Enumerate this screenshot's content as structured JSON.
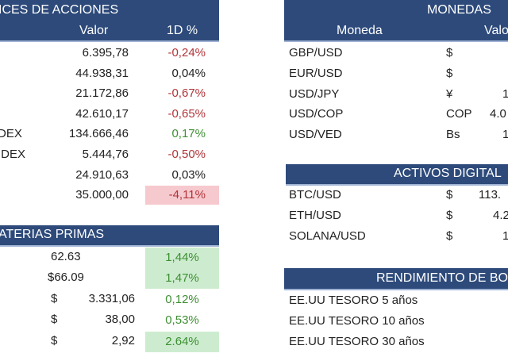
{
  "indices": {
    "title": "ICES DE ACCIONES",
    "col_valor": "Valor",
    "col_1d": "1D %",
    "rows": [
      {
        "label": "",
        "valor": "6.395,78",
        "pct": "-0,24%",
        "tone": "red"
      },
      {
        "label": "",
        "valor": "44.938,31",
        "pct": "0,04%",
        "tone": "neutral"
      },
      {
        "label": "",
        "valor": "21.172,86",
        "pct": "-0,67%",
        "tone": "red"
      },
      {
        "label": "",
        "valor": "42.610,17",
        "pct": "-0,65%",
        "tone": "red"
      },
      {
        "label": "DEX",
        "valor": "134.666,46",
        "pct": "0,17%",
        "tone": "green"
      },
      {
        "label": "IDEX",
        "valor": "5.444,76",
        "pct": "-0,50%",
        "tone": "red"
      },
      {
        "label": "",
        "valor": "24.910,63",
        "pct": "0,03%",
        "tone": "neutral"
      },
      {
        "label": "",
        "valor": "35.000,00",
        "pct": "-4,11%",
        "tone": "red-highlight"
      }
    ]
  },
  "materias": {
    "title": "ATERIAS PRIMAS",
    "rows": [
      {
        "label": "",
        "cur": "",
        "valor": "62.63",
        "pct": "1,44%",
        "hl": true
      },
      {
        "label": "",
        "cur": "",
        "valor": "$66.09",
        "pct": "1,47%",
        "hl": true
      },
      {
        "label": "",
        "cur": "$",
        "valor": "3.331,06",
        "pct": "0,12%",
        "hl": false
      },
      {
        "label": "",
        "cur": "$",
        "valor": "38,00",
        "pct": "0,53%",
        "hl": false
      },
      {
        "label": "",
        "cur": "$",
        "valor": "2,92",
        "pct": "2.64%",
        "hl": true
      }
    ]
  },
  "monedas": {
    "title": "MONEDAS",
    "col_moneda": "Moneda",
    "col_valor": "Valo",
    "rows": [
      {
        "pair": "GBP/USD",
        "cur": "$",
        "valor": ""
      },
      {
        "pair": "EUR/USD",
        "cur": "$",
        "valor": ""
      },
      {
        "pair": "USD/JPY",
        "cur": "¥",
        "valor": "1"
      },
      {
        "pair": "USD/COP",
        "cur": "COP",
        "valor": "4.0"
      },
      {
        "pair": "USD/VED",
        "cur": "Bs",
        "valor": "1"
      }
    ]
  },
  "digitales": {
    "title": "ACTIVOS DIGITAL",
    "rows": [
      {
        "pair": "BTC/USD",
        "cur": "$",
        "valor": "113."
      },
      {
        "pair": "ETH/USD",
        "cur": "$",
        "valor": "4.2"
      },
      {
        "pair": "SOLANA/USD",
        "cur": "$",
        "valor": "1"
      }
    ]
  },
  "bonos": {
    "title": "RENDIMIENTO DE BO",
    "rows": [
      {
        "label": "EE.UU TESORO 5 años"
      },
      {
        "label": "EE.UU TESORO 10 años"
      },
      {
        "label": "EE.UU TESORO 30 años"
      }
    ]
  }
}
